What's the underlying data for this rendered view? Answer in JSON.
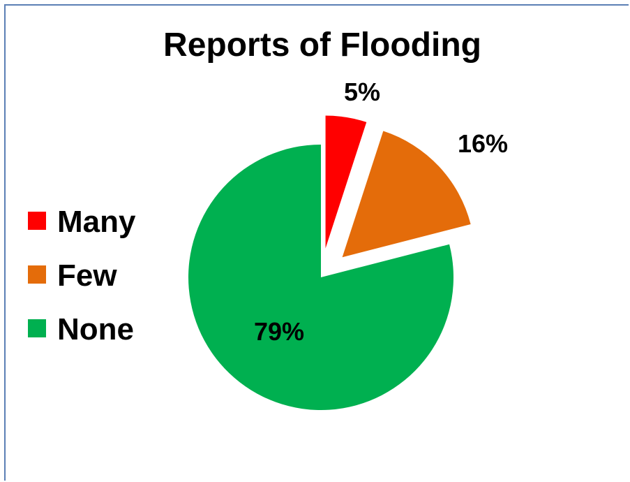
{
  "chart_data": {
    "type": "pie",
    "title": "Reports of Flooding",
    "legend_position": "left",
    "exploded": [
      "Many",
      "Few"
    ],
    "slices": [
      {
        "label": "Many",
        "value": 5,
        "display": "5%",
        "color": "#ff0000"
      },
      {
        "label": "Few",
        "value": 16,
        "display": "16%",
        "color": "#e46c0a"
      },
      {
        "label": "None",
        "value": 79,
        "display": "79%",
        "color": "#00b050"
      }
    ]
  }
}
